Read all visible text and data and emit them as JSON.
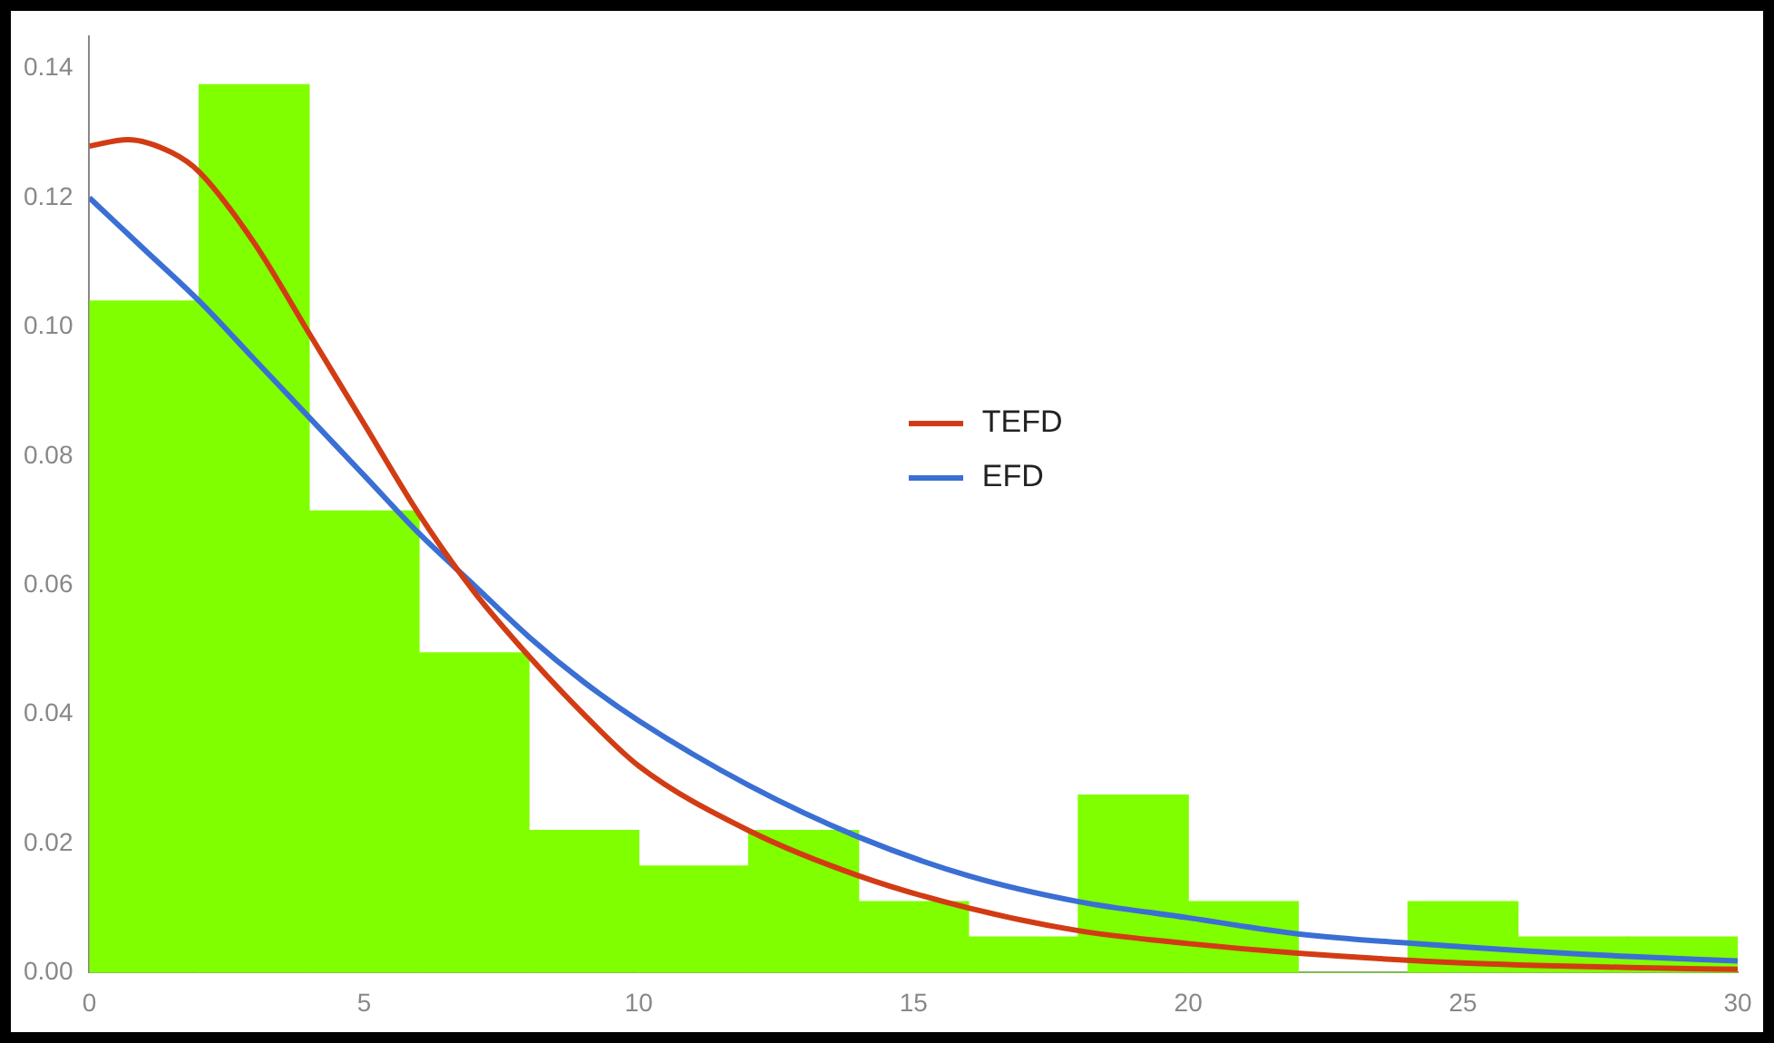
{
  "chart_data": {
    "type": "histogram",
    "bins": [
      0,
      2,
      4,
      6,
      8,
      10,
      12,
      14,
      16,
      18,
      20,
      22,
      24,
      26,
      28,
      30
    ],
    "values": [
      0.104,
      0.1375,
      0.0715,
      0.0495,
      0.022,
      0.0165,
      0.022,
      0.011,
      0.0055,
      0.0275,
      0.011,
      0,
      0.011,
      0.0055,
      0.0055
    ],
    "color": "#80ff00",
    "series": [
      {
        "name": "TEFD",
        "type": "line",
        "color": "#d23c14",
        "x": [
          0,
          0.7,
          1.5,
          2,
          3,
          4,
          5,
          6,
          7,
          8,
          9,
          10,
          12,
          14,
          16,
          18,
          20,
          22,
          25,
          28,
          30
        ],
        "values": [
          0.128,
          0.129,
          0.127,
          0.124,
          0.113,
          0.099,
          0.085,
          0.071,
          0.059,
          0.049,
          0.04,
          0.032,
          0.022,
          0.015,
          0.01,
          0.0065,
          0.0045,
          0.003,
          0.0015,
          0.0008,
          0.0005
        ]
      },
      {
        "name": "EFD",
        "type": "line",
        "color": "#3a6fd4",
        "x": [
          0,
          1,
          2,
          3,
          4,
          5,
          6,
          7,
          8,
          9,
          10,
          12,
          14,
          16,
          18,
          20,
          22,
          25,
          28,
          30
        ],
        "values": [
          0.12,
          0.112,
          0.104,
          0.095,
          0.086,
          0.077,
          0.068,
          0.06,
          0.052,
          0.045,
          0.039,
          0.029,
          0.021,
          0.015,
          0.011,
          0.0085,
          0.006,
          0.004,
          0.0025,
          0.0018
        ]
      }
    ],
    "xlim": [
      0,
      30
    ],
    "xticks": [
      0,
      5,
      10,
      15,
      20,
      25,
      30
    ],
    "ylim": [
      0,
      0.145
    ],
    "yticks": [
      {
        "value": 0,
        "label": "0.00"
      },
      {
        "value": 0.02,
        "label": "0.02"
      },
      {
        "value": 0.04,
        "label": "0.04"
      },
      {
        "value": 0.06,
        "label": "0.06"
      },
      {
        "value": 0.08,
        "label": "0.08"
      },
      {
        "value": 0.1,
        "label": "0.10"
      },
      {
        "value": 0.12,
        "label": "0.12"
      },
      {
        "value": 0.14,
        "label": "0.14"
      }
    ],
    "legend": "center",
    "grid": false
  }
}
